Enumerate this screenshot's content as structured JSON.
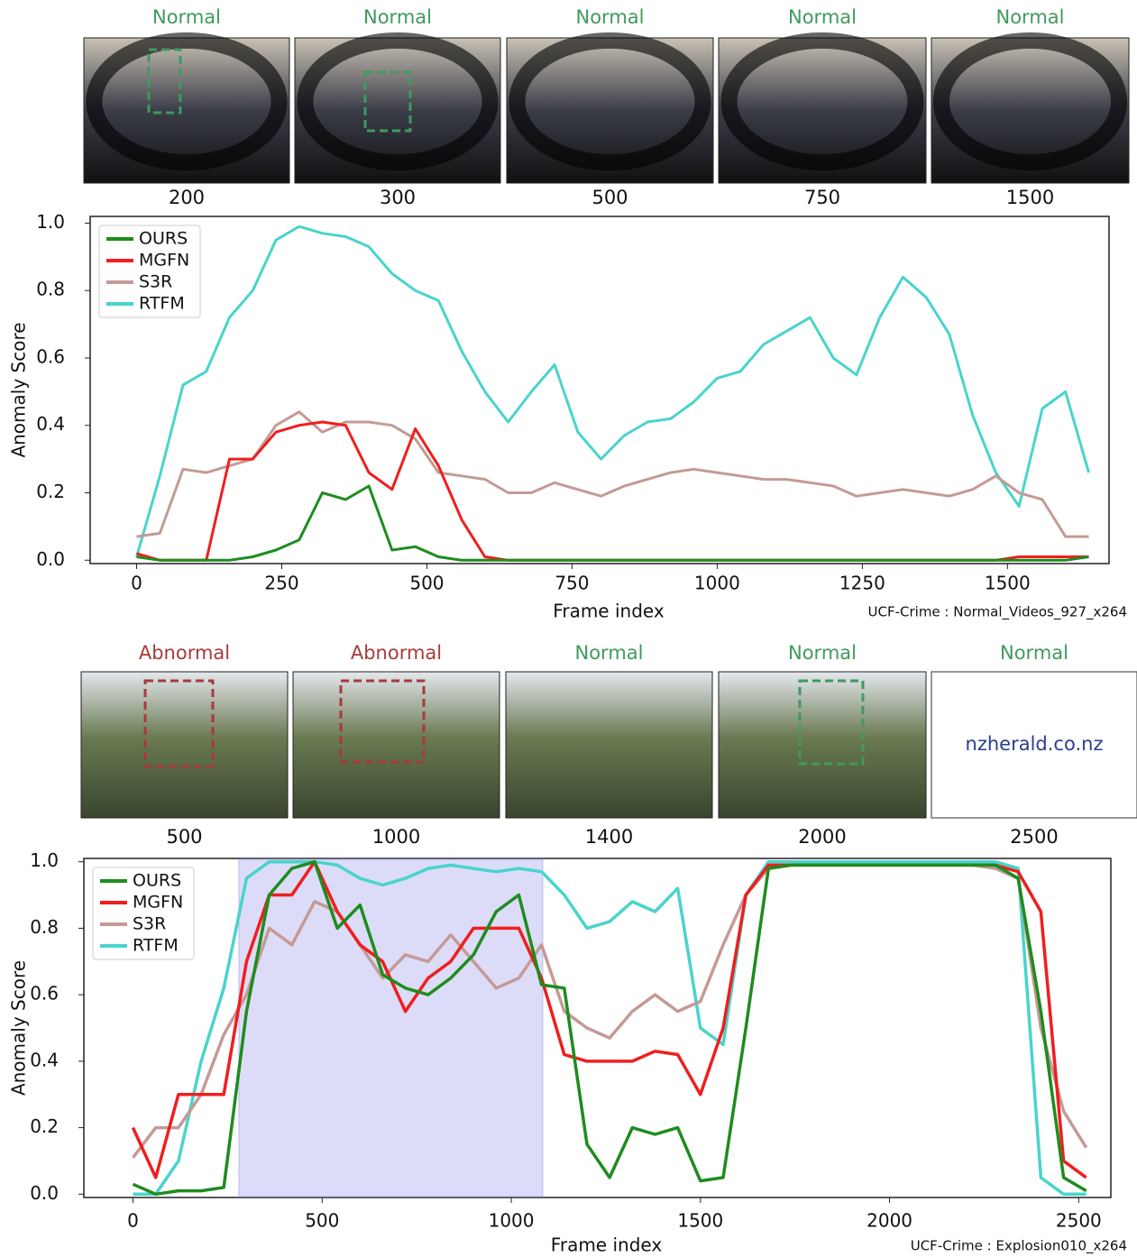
{
  "chart_data": [
    {
      "type": "line",
      "x_label": "Frame index",
      "y_label": "Anomaly Score",
      "source": "UCF-Crime : Normal_Videos_927_x264",
      "legend": "upper left",
      "frames": {
        "labels": [
          "Normal",
          "Normal",
          "Normal",
          "Normal",
          "Normal"
        ],
        "colors": [
          "#3f9a5e",
          "#3f9a5e",
          "#3f9a5e",
          "#3f9a5e",
          "#3f9a5e"
        ],
        "indices": [
          200,
          300,
          500,
          750,
          1500
        ]
      },
      "xlim": [
        -80,
        1675
      ],
      "ylim": [
        -0.01,
        1.02
      ],
      "xticks": [
        0,
        250,
        500,
        750,
        1000,
        1250,
        1500
      ],
      "yticks": [
        {
          "value": 0,
          "label": "0.0"
        },
        0.2,
        0.4,
        0.6,
        0.8,
        {
          "value": 1,
          "label": "1.0"
        }
      ],
      "x": [
        0,
        40,
        80,
        120,
        160,
        200,
        240,
        280,
        320,
        360,
        400,
        440,
        480,
        520,
        560,
        600,
        640,
        680,
        720,
        760,
        800,
        840,
        880,
        920,
        960,
        1000,
        1040,
        1080,
        1120,
        1160,
        1200,
        1240,
        1280,
        1320,
        1360,
        1400,
        1440,
        1480,
        1520,
        1560,
        1600,
        1640
      ],
      "series": [
        {
          "name": "OURS",
          "color": "#1e8c1e",
          "values": [
            0.01,
            0,
            0,
            0,
            0,
            0.01,
            0.03,
            0.06,
            0.2,
            0.18,
            0.22,
            0.03,
            0.04,
            0.01,
            0,
            0,
            0,
            0,
            0,
            0,
            0,
            0,
            0,
            0,
            0,
            0,
            0,
            0,
            0,
            0,
            0,
            0,
            0,
            0,
            0,
            0,
            0,
            0,
            0,
            0,
            0,
            0.01
          ]
        },
        {
          "name": "MGFN",
          "color": "#f01e1e",
          "values": [
            0.02,
            0,
            0,
            0,
            0.3,
            0.3,
            0.38,
            0.4,
            0.41,
            0.4,
            0.26,
            0.21,
            0.39,
            0.28,
            0.12,
            0.01,
            0,
            0,
            0,
            0,
            0,
            0,
            0,
            0,
            0,
            0,
            0,
            0,
            0,
            0,
            0,
            0,
            0,
            0,
            0,
            0,
            0,
            0,
            0.01,
            0.01,
            0.01,
            0.01
          ]
        },
        {
          "name": "S3R",
          "color": "#c49a96",
          "values": [
            0.07,
            0.08,
            0.27,
            0.26,
            0.28,
            0.3,
            0.4,
            0.44,
            0.38,
            0.41,
            0.41,
            0.4,
            0.36,
            0.26,
            0.25,
            0.24,
            0.2,
            0.2,
            0.23,
            0.21,
            0.19,
            0.22,
            0.24,
            0.26,
            0.27,
            0.26,
            0.25,
            0.24,
            0.24,
            0.23,
            0.22,
            0.19,
            0.2,
            0.21,
            0.2,
            0.19,
            0.21,
            0.25,
            0.2,
            0.18,
            0.07,
            0.07
          ]
        },
        {
          "name": "RTFM",
          "color": "#48d4cc",
          "values": [
            0.01,
            0.25,
            0.52,
            0.56,
            0.72,
            0.8,
            0.95,
            0.99,
            0.97,
            0.96,
            0.93,
            0.85,
            0.8,
            0.77,
            0.62,
            0.5,
            0.41,
            0.5,
            0.58,
            0.38,
            0.3,
            0.37,
            0.41,
            0.42,
            0.47,
            0.54,
            0.56,
            0.64,
            0.68,
            0.72,
            0.6,
            0.55,
            0.72,
            0.84,
            0.78,
            0.67,
            0.43,
            0.26,
            0.16,
            0.45,
            0.5,
            0.26
          ]
        }
      ]
    },
    {
      "type": "line",
      "x_label": "Frame index",
      "y_label": "Anomaly Score",
      "source": "UCF-Crime : Explosion010_x264",
      "legend": "upper left",
      "highlight": [
        280,
        1083
      ],
      "highlight_color": "#dcdcf8",
      "watermark": "nzherald.co.nz",
      "frames": {
        "labels": [
          "Abnormal",
          "Abnormal",
          "Normal",
          "Normal",
          "Normal"
        ],
        "colors": [
          "#a83a3a",
          "#a83a3a",
          "#3f9a5e",
          "#3f9a5e",
          "#3f9a5e"
        ],
        "indices": [
          500,
          1000,
          1400,
          2000,
          2500
        ]
      },
      "xlim": [
        -130,
        2585
      ],
      "ylim": [
        -0.01,
        1.01
      ],
      "xticks": [
        0,
        500,
        1000,
        1500,
        2000,
        2500
      ],
      "yticks": [
        {
          "value": 0,
          "label": "0.0"
        },
        0.2,
        0.4,
        0.6,
        0.8,
        {
          "value": 1,
          "label": "1.0"
        }
      ],
      "x": [
        0,
        60,
        120,
        180,
        240,
        300,
        360,
        420,
        480,
        540,
        600,
        660,
        720,
        780,
        840,
        900,
        960,
        1020,
        1080,
        1140,
        1200,
        1260,
        1320,
        1380,
        1440,
        1500,
        1560,
        1620,
        1680,
        1740,
        1800,
        1860,
        1920,
        1980,
        2040,
        2100,
        2160,
        2220,
        2280,
        2340,
        2400,
        2460,
        2520
      ],
      "series": [
        {
          "name": "OURS",
          "color": "#1e8c1e",
          "values": [
            0.03,
            0,
            0.01,
            0.01,
            0.02,
            0.55,
            0.9,
            0.98,
            1,
            0.8,
            0.87,
            0.66,
            0.62,
            0.6,
            0.65,
            0.72,
            0.85,
            0.9,
            0.63,
            0.62,
            0.15,
            0.05,
            0.2,
            0.18,
            0.2,
            0.04,
            0.05,
            0.5,
            0.98,
            0.99,
            0.99,
            0.99,
            0.99,
            0.99,
            0.99,
            0.99,
            0.99,
            0.99,
            0.99,
            0.95,
            0.55,
            0.05,
            0.01
          ]
        },
        {
          "name": "MGFN",
          "color": "#f01e1e",
          "values": [
            0.2,
            0.05,
            0.3,
            0.3,
            0.3,
            0.7,
            0.9,
            0.9,
            1,
            0.85,
            0.75,
            0.7,
            0.55,
            0.65,
            0.7,
            0.8,
            0.8,
            0.8,
            0.65,
            0.42,
            0.4,
            0.4,
            0.4,
            0.43,
            0.42,
            0.3,
            0.5,
            0.9,
            0.99,
            0.99,
            0.99,
            0.99,
            0.99,
            0.99,
            0.99,
            0.99,
            0.99,
            0.99,
            0.99,
            0.97,
            0.85,
            0.1,
            0.05
          ]
        },
        {
          "name": "S3R",
          "color": "#c49a96",
          "values": [
            0.11,
            0.2,
            0.2,
            0.3,
            0.48,
            0.6,
            0.8,
            0.75,
            0.88,
            0.85,
            0.75,
            0.65,
            0.72,
            0.7,
            0.78,
            0.7,
            0.62,
            0.65,
            0.75,
            0.55,
            0.5,
            0.47,
            0.55,
            0.6,
            0.55,
            0.58,
            0.75,
            0.9,
            0.98,
            0.99,
            0.99,
            0.99,
            0.99,
            0.99,
            0.99,
            0.99,
            0.99,
            0.99,
            0.98,
            0.95,
            0.5,
            0.25,
            0.14
          ]
        },
        {
          "name": "RTFM",
          "color": "#48d4cc",
          "values": [
            0,
            0,
            0.1,
            0.4,
            0.62,
            0.95,
            1,
            1,
            1,
            0.99,
            0.95,
            0.93,
            0.95,
            0.98,
            0.99,
            0.98,
            0.97,
            0.98,
            0.97,
            0.9,
            0.8,
            0.82,
            0.88,
            0.85,
            0.92,
            0.5,
            0.45,
            0.9,
            1,
            1,
            1,
            1,
            1,
            1,
            1,
            1,
            1,
            1,
            1,
            0.98,
            0.05,
            0,
            0
          ]
        }
      ]
    }
  ]
}
